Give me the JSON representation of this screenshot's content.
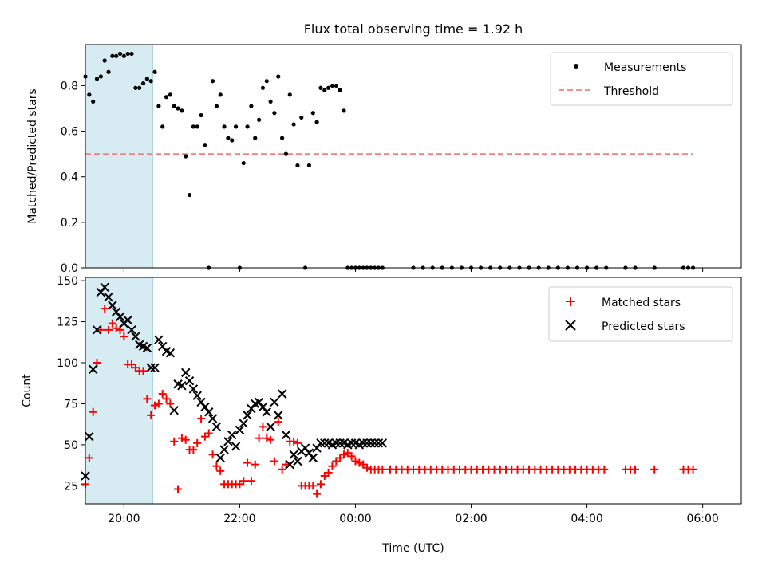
{
  "figure": {
    "title": "Flux total observing time = 1.92 h",
    "xlabel": "Time (UTC)"
  },
  "chart_data": [
    {
      "type": "scatter",
      "title": "Flux total observing time = 1.92 h",
      "xlabel": "",
      "ylabel": "Matched/Predicted stars",
      "xlim": [
        "19:20",
        "06:40"
      ],
      "ylim": [
        0,
        0.98
      ],
      "yticks": [
        "0.0",
        "0.2",
        "0.4",
        "0.6",
        "0.8"
      ],
      "ytick_values": [
        0,
        0.2,
        0.4,
        0.6,
        0.8
      ],
      "grid": false,
      "legend": "top-right",
      "highlight_span": {
        "start": "19:20",
        "end": "20:30",
        "color": "#add8e6"
      },
      "threshold": {
        "name": "Threshold",
        "value": 0.5,
        "x_start": "19:20",
        "x_end": "05:50",
        "color": "#f08080"
      },
      "series": [
        {
          "name": "Measurements",
          "marker": "dot",
          "color": "#000000",
          "x": [
            "19:20",
            "19:24",
            "19:28",
            "19:32",
            "19:36",
            "19:40",
            "19:44",
            "19:48",
            "19:52",
            "19:56",
            "20:00",
            "20:04",
            "20:08",
            "20:12",
            "20:16",
            "20:20",
            "20:24",
            "20:28",
            "20:32",
            "20:36",
            "20:40",
            "20:44",
            "20:48",
            "20:52",
            "20:56",
            "21:00",
            "21:04",
            "21:08",
            "21:12",
            "21:16",
            "21:20",
            "21:24",
            "21:28",
            "21:32",
            "21:36",
            "21:40",
            "21:44",
            "21:48",
            "21:52",
            "21:56",
            "22:00",
            "22:04",
            "22:08",
            "22:12",
            "22:16",
            "22:20",
            "22:24",
            "22:28",
            "22:32",
            "22:36",
            "22:40",
            "22:44",
            "22:48",
            "22:52",
            "22:56",
            "23:00",
            "23:04",
            "23:08",
            "23:12",
            "23:16",
            "23:20",
            "23:24",
            "23:28",
            "23:32",
            "23:36",
            "23:40",
            "23:44",
            "23:48",
            "23:52",
            "23:56",
            "00:00",
            "00:04",
            "00:08",
            "00:12",
            "00:16",
            "00:20",
            "00:24",
            "00:28"
          ],
          "y": [
            0.84,
            0.76,
            0.73,
            0.83,
            0.84,
            0.91,
            0.86,
            0.93,
            0.93,
            0.94,
            0.93,
            0.94,
            0.94,
            0.79,
            0.79,
            0.81,
            0.83,
            0.82,
            0.86,
            0.71,
            0.62,
            0.75,
            0.76,
            0.71,
            0.7,
            0.69,
            0.49,
            0.32,
            0.62,
            0.62,
            0.67,
            0.54,
            0.0,
            0.82,
            0.71,
            0.76,
            0.62,
            0.57,
            0.56,
            0.62,
            0.0,
            0.46,
            0.62,
            0.71,
            0.57,
            0.65,
            0.79,
            0.82,
            0.73,
            0.68,
            0.84,
            0.57,
            0.5,
            0.76,
            0.63,
            0.45,
            0.66,
            0.0,
            0.45,
            0.68,
            0.64,
            0.79,
            0.78,
            0.79,
            0.8,
            0.8,
            0.78,
            0.69,
            0.0,
            0.0,
            0.0,
            0.0,
            0.0,
            0.0,
            0.0,
            0.0,
            0.0,
            0.0
          ]
        }
      ],
      "zero_points_x": [
        "01:00",
        "01:10",
        "01:20",
        "01:30",
        "01:40",
        "01:50",
        "02:00",
        "02:10",
        "02:20",
        "02:30",
        "02:40",
        "02:50",
        "03:00",
        "03:10",
        "03:20",
        "03:30",
        "03:40",
        "03:50",
        "04:00",
        "04:10",
        "04:20",
        "04:40",
        "04:50",
        "05:10",
        "05:40",
        "05:45",
        "05:50"
      ]
    },
    {
      "type": "scatter",
      "title": "",
      "xlabel": "Time (UTC)",
      "ylabel": "Count",
      "xlim": [
        "19:20",
        "06:40"
      ],
      "ylim": [
        14,
        152
      ],
      "yticks": [
        "25",
        "50",
        "75",
        "100",
        "125",
        "150"
      ],
      "ytick_values": [
        25,
        50,
        75,
        100,
        125,
        150
      ],
      "xticks": [
        "20:00",
        "22:00",
        "00:00",
        "02:00",
        "04:00",
        "06:00"
      ],
      "grid": false,
      "legend": "top-right",
      "highlight_span": {
        "start": "19:20",
        "end": "20:30",
        "color": "#add8e6"
      },
      "series": [
        {
          "name": "Matched stars",
          "marker": "plus",
          "color": "#ff0000",
          "x": [
            "19:20",
            "19:24",
            "19:28",
            "19:32",
            "19:36",
            "19:40",
            "19:44",
            "19:48",
            "19:52",
            "19:56",
            "20:00",
            "20:04",
            "20:08",
            "20:12",
            "20:16",
            "20:20",
            "20:24",
            "20:28",
            "20:32",
            "20:36",
            "20:40",
            "20:44",
            "20:48",
            "20:52",
            "20:56",
            "21:00",
            "21:04",
            "21:08",
            "21:12",
            "21:16",
            "21:20",
            "21:24",
            "21:28",
            "21:32",
            "21:36",
            "21:40",
            "21:44",
            "21:48",
            "21:52",
            "21:56",
            "22:00",
            "22:04",
            "22:08",
            "22:12",
            "22:16",
            "22:20",
            "22:24",
            "22:28",
            "22:32",
            "22:36",
            "22:40",
            "22:44",
            "22:48",
            "22:52",
            "22:56",
            "23:00",
            "23:04",
            "23:08",
            "23:12",
            "23:16",
            "23:20",
            "23:24",
            "23:28",
            "23:32",
            "23:36",
            "23:40",
            "23:44",
            "23:48",
            "23:52",
            "23:56",
            "00:00",
            "00:04",
            "00:08",
            "00:12",
            "00:16",
            "00:20",
            "00:24",
            "00:28"
          ],
          "y": [
            26,
            42,
            70,
            100,
            120,
            133,
            120,
            124,
            121,
            120,
            116,
            99,
            99,
            97,
            95,
            95,
            78,
            68,
            74,
            75,
            81,
            78,
            75,
            52,
            23,
            54,
            53,
            47,
            47,
            51,
            66,
            55,
            57,
            44,
            37,
            34,
            26,
            26,
            26,
            26,
            26,
            28,
            39,
            28,
            38,
            54,
            61,
            54,
            53,
            40,
            64,
            35,
            38,
            52,
            52,
            51,
            25,
            25,
            25,
            25,
            20,
            26,
            31,
            33,
            37,
            40,
            42,
            44,
            45,
            43,
            40,
            39,
            38,
            36,
            35,
            35,
            35,
            35
          ]
        },
        {
          "name": "Predicted stars",
          "marker": "x",
          "color": "#000000",
          "x": [
            "19:20",
            "19:24",
            "19:28",
            "19:32",
            "19:36",
            "19:40",
            "19:44",
            "19:48",
            "19:52",
            "19:56",
            "20:00",
            "20:04",
            "20:08",
            "20:12",
            "20:16",
            "20:20",
            "20:24",
            "20:28",
            "20:32",
            "20:36",
            "20:40",
            "20:44",
            "20:48",
            "20:52",
            "20:56",
            "21:00",
            "21:04",
            "21:08",
            "21:12",
            "21:16",
            "21:20",
            "21:24",
            "21:28",
            "21:32",
            "21:36",
            "21:40",
            "21:44",
            "21:48",
            "21:52",
            "21:56",
            "22:00",
            "22:04",
            "22:08",
            "22:12",
            "22:16",
            "22:20",
            "22:24",
            "22:28",
            "22:32",
            "22:36",
            "22:40",
            "22:44",
            "22:48",
            "22:52",
            "22:56",
            "23:00",
            "23:04",
            "23:08",
            "23:12",
            "23:16",
            "23:20",
            "23:24",
            "23:28",
            "23:32",
            "23:36",
            "23:40",
            "23:44",
            "23:48",
            "23:52",
            "23:56",
            "00:00",
            "00:04",
            "00:08",
            "00:12",
            "00:16",
            "00:20",
            "00:24",
            "00:28"
          ],
          "y": [
            31,
            55,
            96,
            120,
            143,
            146,
            140,
            135,
            131,
            128,
            124,
            126,
            120,
            116,
            111,
            110,
            109,
            97,
            97,
            114,
            110,
            107,
            106,
            71,
            87,
            86,
            94,
            89,
            84,
            80,
            76,
            73,
            70,
            66,
            61,
            42,
            47,
            52,
            56,
            49,
            59,
            63,
            68,
            72,
            75,
            76,
            73,
            70,
            61,
            76,
            68,
            81,
            56,
            38,
            44,
            40,
            46,
            48,
            45,
            42,
            48,
            51,
            51,
            51,
            50,
            51,
            51,
            51,
            50,
            51,
            51,
            50,
            51,
            51,
            51,
            51,
            51,
            51
          ]
        }
      ],
      "flat_tail": {
        "value": 35,
        "x": [
          "00:36",
          "00:42",
          "00:48",
          "00:54",
          "01:00",
          "01:06",
          "01:12",
          "01:18",
          "01:24",
          "01:30",
          "01:36",
          "01:42",
          "01:48",
          "01:54",
          "02:00",
          "02:06",
          "02:12",
          "02:18",
          "02:24",
          "02:30",
          "02:36",
          "02:42",
          "02:48",
          "02:54",
          "03:00",
          "03:06",
          "03:12",
          "03:18",
          "03:24",
          "03:30",
          "03:36",
          "03:42",
          "03:48",
          "03:54",
          "04:00",
          "04:06",
          "04:12",
          "04:18",
          "04:40",
          "04:45",
          "04:50",
          "05:10",
          "05:40",
          "05:45",
          "05:50"
        ]
      }
    }
  ]
}
